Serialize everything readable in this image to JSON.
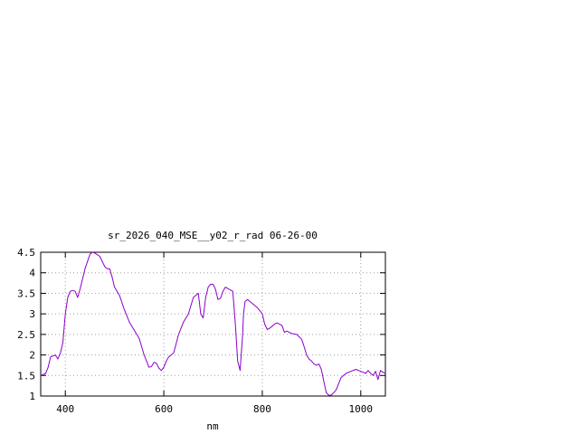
{
  "chart_data": {
    "type": "line",
    "title": "sr_2026_040_MSE__y02_r_rad 06-26-00",
    "xlabel": "nm",
    "ylabel": "",
    "xlim": [
      350,
      1050
    ],
    "ylim": [
      1,
      4.5
    ],
    "x_ticks": [
      400,
      600,
      800,
      1000
    ],
    "y_ticks": [
      1,
      1.5,
      2,
      2.5,
      3,
      3.5,
      4,
      4.5
    ],
    "x_tick_labels": [
      "400",
      "600",
      "800",
      "1000"
    ],
    "y_tick_labels": [
      "1",
      "1.5",
      "2",
      "2.5",
      "3",
      "3.5",
      "4",
      "4.5"
    ],
    "grid": true,
    "series": [
      {
        "color": "#8a00c8",
        "x": [
          350,
          360,
          365,
          370,
          380,
          385,
          390,
          395,
          400,
          405,
          410,
          415,
          420,
          425,
          430,
          440,
          450,
          455,
          460,
          470,
          480,
          485,
          490,
          495,
          500,
          510,
          520,
          530,
          540,
          550,
          560,
          570,
          575,
          580,
          585,
          590,
          595,
          600,
          605,
          610,
          620,
          630,
          640,
          650,
          660,
          670,
          675,
          680,
          685,
          690,
          695,
          700,
          705,
          710,
          715,
          720,
          725,
          730,
          740,
          745,
          750,
          755,
          760,
          762,
          765,
          770,
          775,
          780,
          790,
          800,
          805,
          810,
          815,
          820,
          825,
          830,
          840,
          845,
          850,
          855,
          860,
          870,
          880,
          885,
          890,
          895,
          900,
          905,
          910,
          915,
          920,
          925,
          930,
          935,
          940,
          945,
          950,
          955,
          960,
          965,
          970,
          980,
          990,
          1000,
          1005,
          1010,
          1015,
          1020,
          1025,
          1030,
          1035,
          1040,
          1045,
          1050
        ],
        "values": [
          1.5,
          1.55,
          1.7,
          1.95,
          2.0,
          1.9,
          2.05,
          2.3,
          3.0,
          3.4,
          3.55,
          3.57,
          3.55,
          3.4,
          3.6,
          4.1,
          4.45,
          4.5,
          4.48,
          4.4,
          4.15,
          4.1,
          4.1,
          3.9,
          3.65,
          3.45,
          3.1,
          2.8,
          2.6,
          2.4,
          2.0,
          1.7,
          1.72,
          1.82,
          1.8,
          1.68,
          1.62,
          1.7,
          1.85,
          1.95,
          2.05,
          2.5,
          2.8,
          3.0,
          3.4,
          3.5,
          3.0,
          2.9,
          3.4,
          3.65,
          3.72,
          3.72,
          3.6,
          3.35,
          3.38,
          3.55,
          3.65,
          3.62,
          3.55,
          2.8,
          1.85,
          1.62,
          2.5,
          3.0,
          3.3,
          3.35,
          3.3,
          3.25,
          3.15,
          3.0,
          2.75,
          2.62,
          2.65,
          2.7,
          2.75,
          2.78,
          2.72,
          2.55,
          2.58,
          2.55,
          2.52,
          2.5,
          2.38,
          2.2,
          2.0,
          1.9,
          1.85,
          1.78,
          1.75,
          1.78,
          1.65,
          1.35,
          1.08,
          1.02,
          1.02,
          1.08,
          1.15,
          1.3,
          1.45,
          1.5,
          1.55,
          1.6,
          1.65,
          1.6,
          1.58,
          1.55,
          1.62,
          1.55,
          1.5,
          1.6,
          1.4,
          1.62,
          1.58,
          1.55
        ]
      }
    ]
  }
}
